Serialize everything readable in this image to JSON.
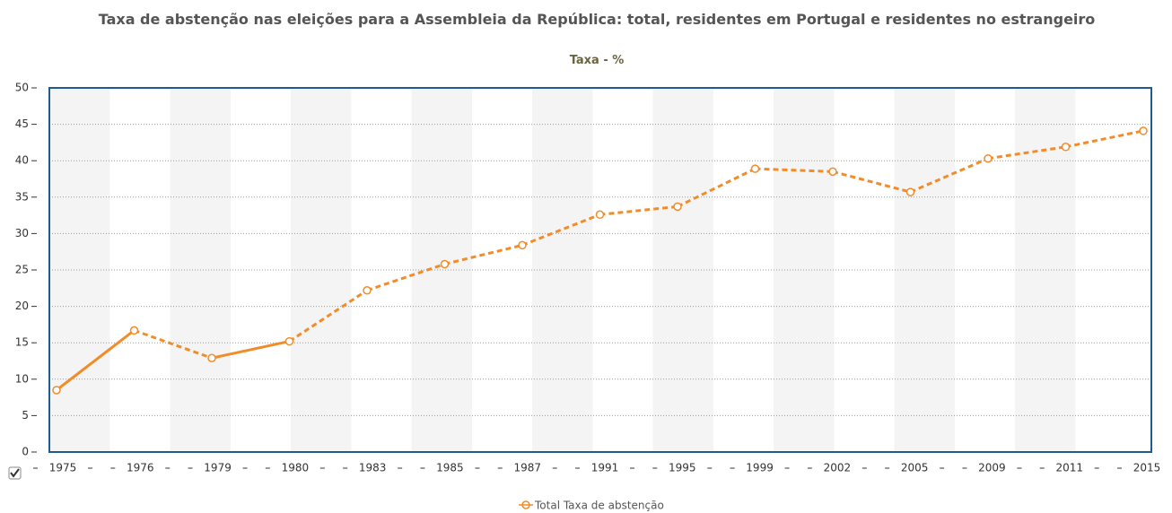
{
  "chart_data": {
    "type": "line",
    "title": "Taxa de abstenção nas eleições para a Assembleia da República: total, residentes em Portugal e residentes no estrangeiro",
    "subtitle": "Taxa - %",
    "categories": [
      "1975",
      "1976",
      "1979",
      "1980",
      "1983",
      "1985",
      "1987",
      "1991",
      "1995",
      "1999",
      "2002",
      "2005",
      "2009",
      "2011",
      "2015"
    ],
    "series": [
      {
        "name": "Total Taxa de abstenção",
        "color": "#f28c28",
        "values": [
          8.5,
          16.7,
          12.9,
          15.2,
          22.2,
          25.8,
          28.4,
          32.6,
          33.7,
          38.9,
          38.5,
          35.7,
          40.3,
          41.9,
          44.1
        ]
      }
    ],
    "ylim": [
      0,
      50
    ],
    "yticks": [
      0,
      5,
      10,
      15,
      20,
      25,
      30,
      35,
      40,
      45,
      50
    ],
    "grid": true,
    "legend": "bottom"
  }
}
